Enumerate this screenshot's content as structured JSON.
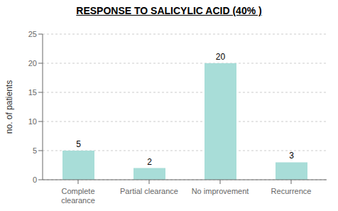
{
  "chart_data": {
    "type": "bar",
    "title": "RESPONSE TO SALICYLIC ACID (40% )",
    "categories": [
      "Complete\nclearance",
      "Partial clearance",
      "No improvement",
      "Recurrence"
    ],
    "values": [
      5,
      2,
      20,
      3
    ],
    "color": "#a8ddd8",
    "ylabel": "no. of patients",
    "ylim": [
      0,
      25
    ],
    "yticks": [
      0,
      5,
      10,
      15,
      20,
      25
    ],
    "grid": true,
    "data_labels": true
  }
}
